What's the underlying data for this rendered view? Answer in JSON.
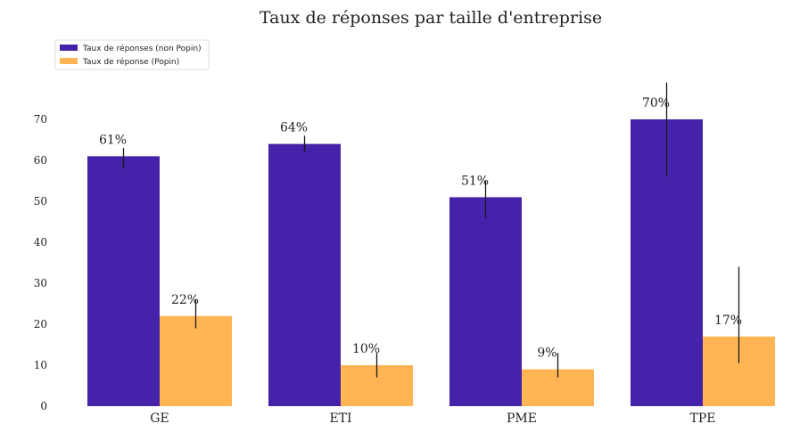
{
  "chart_data": {
    "type": "bar",
    "title": "Taux de réponses par taille d'entreprise",
    "xlabel": "",
    "ylabel": "",
    "categories": [
      "GE",
      "ETI",
      "PME",
      "TPE"
    ],
    "series": [
      {
        "name": "Taux de réponses (non Popin)",
        "color": "#4422aa",
        "values": [
          61,
          64,
          51,
          70
        ],
        "labels": [
          "61%",
          "64%",
          "51%",
          "70%"
        ],
        "error": [
          [
            58,
            63
          ],
          [
            62,
            66
          ],
          [
            46,
            55
          ],
          [
            56,
            79
          ]
        ]
      },
      {
        "name": "Taux de réponse (Popin)",
        "color": "#ffb554",
        "values": [
          22,
          10,
          9,
          17
        ],
        "labels": [
          "22%",
          "10%",
          "9%",
          "17%"
        ],
        "error": [
          [
            19,
            26
          ],
          [
            7,
            13
          ],
          [
            7,
            13
          ],
          [
            10.5,
            34
          ]
        ]
      }
    ],
    "ylim": [
      0,
      80
    ],
    "yticks": [
      0,
      10,
      20,
      30,
      40,
      50,
      60,
      70
    ],
    "grid": false,
    "legend": "top-left"
  }
}
